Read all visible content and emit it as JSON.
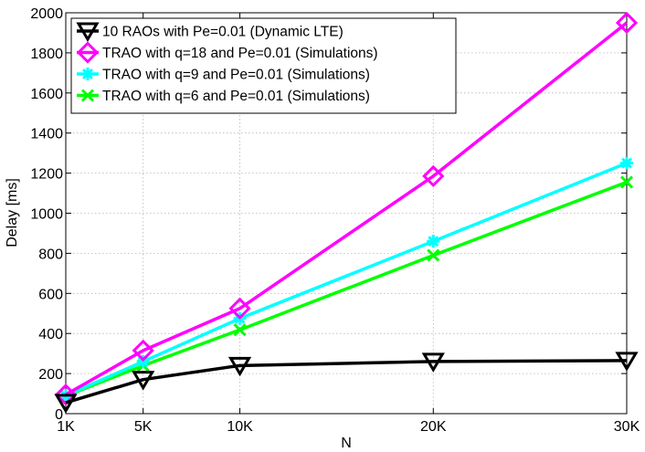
{
  "chart_data": {
    "type": "line",
    "title": "",
    "xlabel": "N",
    "ylabel": "Delay [ms]",
    "x": [
      1000,
      5000,
      10000,
      20000,
      30000
    ],
    "xticks": [
      {
        "value": 1000,
        "label": "1K"
      },
      {
        "value": 5000,
        "label": "5K"
      },
      {
        "value": 10000,
        "label": "10K"
      },
      {
        "value": 20000,
        "label": "20K"
      },
      {
        "value": 30000,
        "label": "30K"
      }
    ],
    "xlim": [
      1000,
      30000
    ],
    "ylim": [
      0,
      2000
    ],
    "yticks": [
      0,
      200,
      400,
      600,
      800,
      1000,
      1200,
      1400,
      1600,
      1800,
      2000
    ],
    "grid": true,
    "legend_position": "top-left",
    "series": [
      {
        "name": "10 RAOs with Pe=0.01 (Dynamic LTE)",
        "color": "#000000",
        "marker": "triangle-down",
        "values": [
          55,
          170,
          240,
          260,
          265
        ]
      },
      {
        "name": "TRAO with q=18 and Pe=0.01 (Simulations)",
        "color": "#ff00ff",
        "marker": "diamond",
        "values": [
          95,
          315,
          525,
          1185,
          1950
        ]
      },
      {
        "name": "TRAO with q=9 and Pe=0.01 (Simulations)",
        "color": "#00ffff",
        "marker": "asterisk",
        "values": [
          90,
          260,
          475,
          860,
          1250
        ]
      },
      {
        "name": "TRAO with q=6 and Pe=0.01 (Simulations)",
        "color": "#00ff00",
        "marker": "x",
        "values": [
          88,
          240,
          418,
          790,
          1155
        ]
      }
    ]
  }
}
